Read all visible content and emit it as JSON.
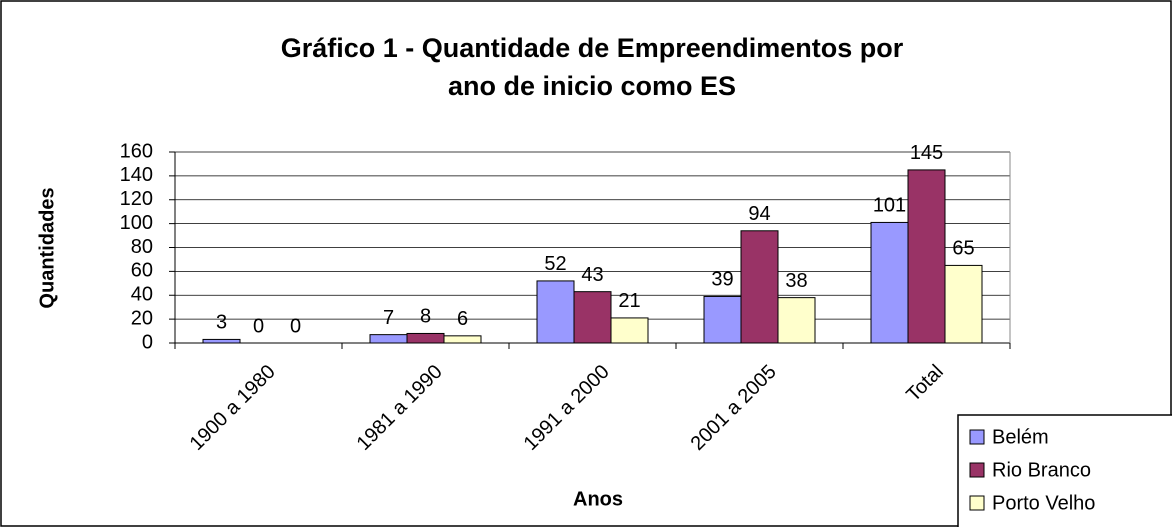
{
  "chart_data": {
    "type": "bar",
    "title": [
      "Gráfico 1 - Quantidade de Empreendimentos por",
      "ano de inicio como ES"
    ],
    "x_label": "Anos",
    "y_label": "Quantidades",
    "categories": [
      "1900 a 1980",
      "1981 a 1990",
      "1991 a 2000",
      "2001 a 2005",
      "Total"
    ],
    "series": [
      {
        "name": "Belém",
        "color": "#9999ff",
        "values": [
          3,
          7,
          52,
          39,
          101
        ]
      },
      {
        "name": "Rio Branco",
        "color": "#993366",
        "values": [
          0,
          8,
          43,
          94,
          145
        ]
      },
      {
        "name": "Porto Velho",
        "color": "#ffffcc",
        "values": [
          0,
          6,
          21,
          38,
          65
        ]
      }
    ],
    "ylim": [
      0,
      160
    ],
    "yticks": [
      0,
      20,
      40,
      60,
      80,
      100,
      120,
      140,
      160
    ],
    "grid": true,
    "legend": "bottom-right"
  }
}
